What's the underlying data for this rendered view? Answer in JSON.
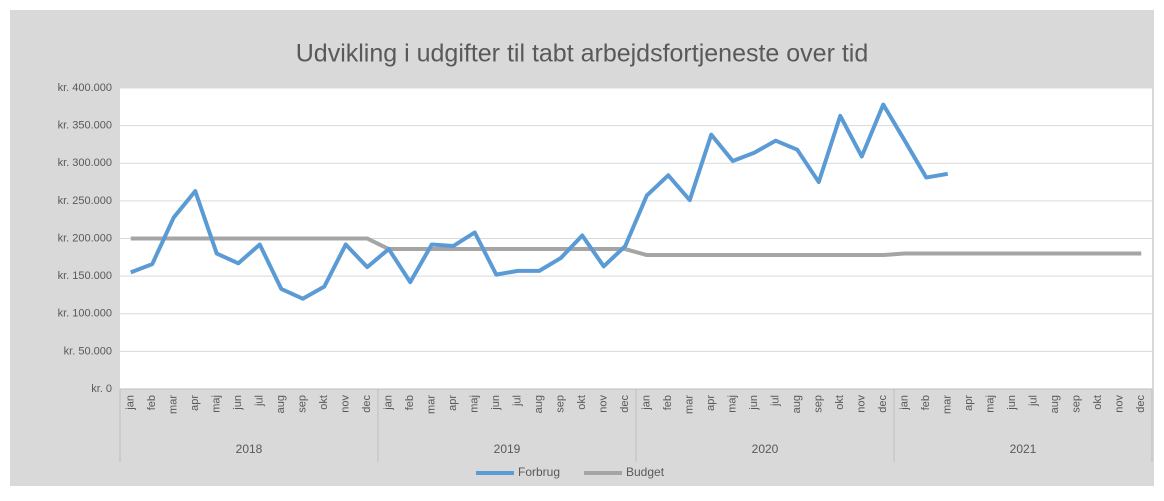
{
  "chart_data": {
    "type": "line",
    "title": "Udvikling i udgifter til tabt arbejdsfortjeneste over tid",
    "categories": [
      "jan",
      "feb",
      "mar",
      "apr",
      "maj",
      "jun",
      "jul",
      "aug",
      "sep",
      "okt",
      "nov",
      "dec",
      "jan",
      "feb",
      "mar",
      "apr",
      "maj",
      "jun",
      "jul",
      "aug",
      "sep",
      "okt",
      "nov",
      "dec",
      "jan",
      "feb",
      "mar",
      "apr",
      "maj",
      "jun",
      "jul",
      "aug",
      "sep",
      "okt",
      "nov",
      "dec",
      "jan",
      "feb",
      "mar",
      "apr",
      "maj",
      "jun",
      "jul",
      "aug",
      "sep",
      "okt",
      "nov",
      "dec"
    ],
    "years": [
      "2018",
      "2019",
      "2020",
      "2021"
    ],
    "series": [
      {
        "name": "Forbrug",
        "color": "#5b9bd5",
        "values": [
          155000,
          166000,
          228000,
          263000,
          180000,
          167000,
          192000,
          133000,
          120000,
          136000,
          192000,
          162000,
          186000,
          142000,
          192000,
          190000,
          208000,
          152000,
          157000,
          157000,
          174000,
          204000,
          163000,
          190000,
          257000,
          284000,
          251000,
          338000,
          303000,
          314000,
          330000,
          318000,
          275000,
          363000,
          309000,
          378000,
          330000,
          281000,
          286000,
          null,
          null,
          null,
          null,
          null,
          null,
          null,
          null,
          null
        ]
      },
      {
        "name": "Budget",
        "color": "#a5a5a5",
        "values": [
          200000,
          200000,
          200000,
          200000,
          200000,
          200000,
          200000,
          200000,
          200000,
          200000,
          200000,
          200000,
          186000,
          186000,
          186000,
          186000,
          186000,
          186000,
          186000,
          186000,
          186000,
          186000,
          186000,
          186000,
          178000,
          178000,
          178000,
          178000,
          178000,
          178000,
          178000,
          178000,
          178000,
          178000,
          178000,
          178000,
          180000,
          180000,
          180000,
          180000,
          180000,
          180000,
          180000,
          180000,
          180000,
          180000,
          180000,
          180000
        ]
      }
    ],
    "ylim": [
      0,
      400000
    ],
    "yticks": [
      {
        "value": 0,
        "label": "kr. 0"
      },
      {
        "value": 50000,
        "label": "kr. 50.000"
      },
      {
        "value": 100000,
        "label": "kr. 100.000"
      },
      {
        "value": 150000,
        "label": "kr. 150.000"
      },
      {
        "value": 200000,
        "label": "kr. 200.000"
      },
      {
        "value": 250000,
        "label": "kr. 250.000"
      },
      {
        "value": 300000,
        "label": "kr. 300.000"
      },
      {
        "value": 350000,
        "label": "kr. 350.000"
      },
      {
        "value": 400000,
        "label": "kr. 400.000"
      }
    ],
    "grid": true,
    "legend": "bottom"
  }
}
